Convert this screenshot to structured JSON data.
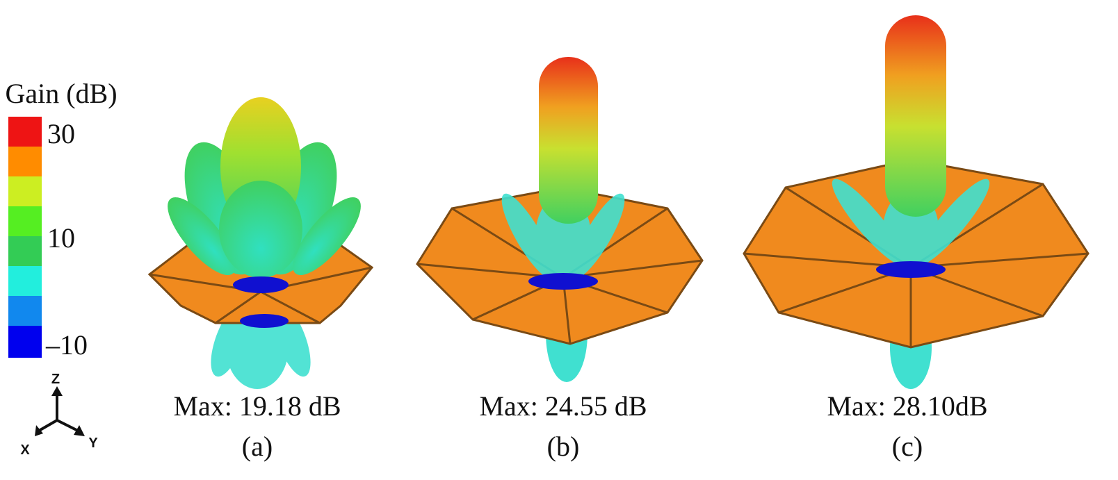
{
  "legend": {
    "title": "Gain (dB)",
    "labels": [
      "30",
      "10",
      "–10"
    ]
  },
  "axes": {
    "z": "Z",
    "x": "X",
    "y": "Y"
  },
  "panels": [
    {
      "max": "Max: 19.18 dB",
      "label": "(a)"
    },
    {
      "max": "Max: 24.55 dB",
      "label": "(b)"
    },
    {
      "max": "Max: 28.10dB",
      "label": "(c)"
    }
  ]
}
